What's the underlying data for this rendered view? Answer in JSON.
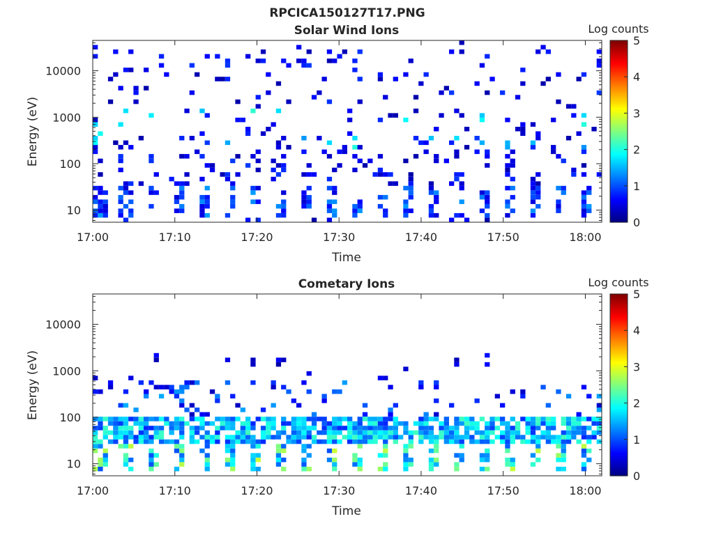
{
  "figure_title": "RPCICA150127T17.PNG",
  "chart_data": [
    {
      "type": "heatmap",
      "title": "Solar Wind Ions",
      "xlabel": "Time",
      "ylabel": "Energy (eV)",
      "x_ticks": [
        "17:00",
        "17:10",
        "17:20",
        "17:30",
        "17:40",
        "17:50",
        "18:00"
      ],
      "x_range": [
        "17:00",
        "18:02"
      ],
      "y_scale": "log",
      "y_ticks": [
        "10",
        "100",
        "1000",
        "10000"
      ],
      "y_range": [
        5.5,
        45000
      ],
      "colorbar": {
        "label": "Log counts",
        "ticks": [
          "0",
          "1",
          "2",
          "3",
          "4",
          "5"
        ],
        "range": [
          0,
          5
        ],
        "colormap": "jet"
      },
      "grid": false,
      "pattern": {
        "seed": 11,
        "low_band_energy": [
          6,
          30
        ],
        "low_band_level": [
          0.4,
          1.4
        ],
        "sparse_density": 0.11,
        "sparse_level": [
          0.2,
          0.9
        ],
        "stripe_energies": [
          900,
          450
        ],
        "stripe_level": [
          1.3,
          2.3
        ]
      }
    },
    {
      "type": "heatmap",
      "title": "Cometary Ions",
      "xlabel": "Time",
      "ylabel": "Energy (eV)",
      "x_ticks": [
        "17:00",
        "17:10",
        "17:20",
        "17:30",
        "17:40",
        "17:50",
        "18:00"
      ],
      "x_range": [
        "17:00",
        "18:02"
      ],
      "y_scale": "log",
      "y_ticks": [
        "10",
        "100",
        "1000",
        "10000"
      ],
      "y_range": [
        5.5,
        45000
      ],
      "colorbar": {
        "label": "Log counts",
        "ticks": [
          "0",
          "1",
          "2",
          "3",
          "4",
          "5"
        ],
        "range": [
          0,
          5
        ],
        "colormap": "jet"
      },
      "grid": false,
      "pattern": {
        "seed": 29,
        "band_energy": [
          25,
          95
        ],
        "band_level": [
          0.8,
          2.2
        ],
        "low_energy": [
          6,
          22
        ],
        "low_level": [
          1.0,
          2.9
        ],
        "sparse_energy": [
          120,
          2200
        ],
        "sparse_density": 0.05,
        "sparse_level": [
          0.2,
          0.7
        ]
      }
    }
  ]
}
